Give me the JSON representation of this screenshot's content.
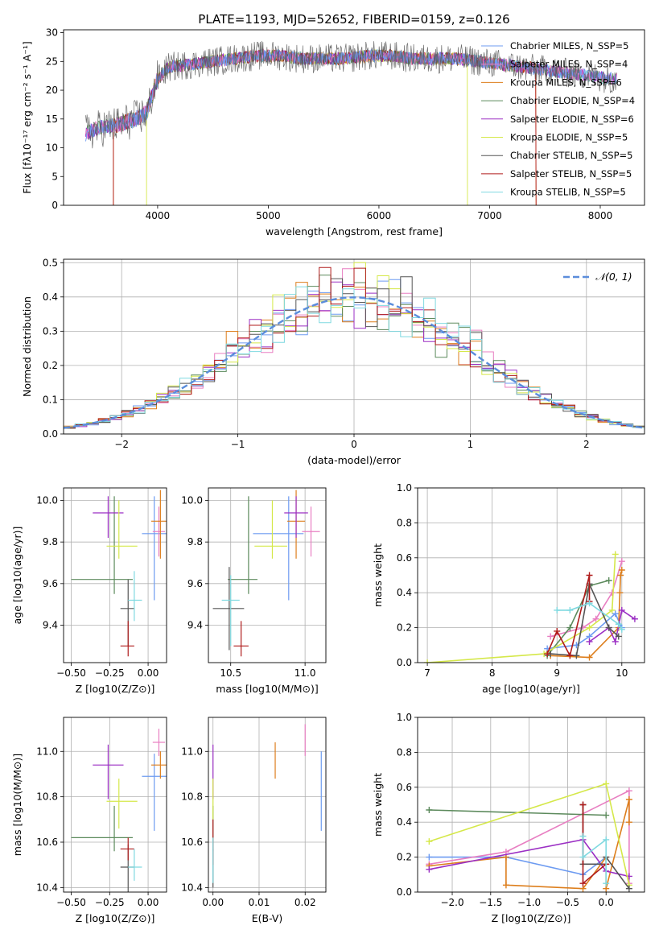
{
  "title": "PLATE=1193, MJD=52652, FIBERID=0159, z=0.126",
  "colors": {
    "chabrier_miles": "#6d9bf1",
    "salpeter_miles": "#e87fc2",
    "kroupa_miles": "#dd7e1c",
    "chabrier_elodie": "#5c8a5c",
    "salpeter_elodie": "#9b2fc4",
    "kroupa_elodie": "#d5e84a",
    "chabrier_stelib": "#555555",
    "salpeter_stelib": "#b01c1c",
    "kroupa_stelib": "#7fd9e0",
    "normal": "#5b8ddb",
    "grid": "#b0b0b0"
  },
  "chart_data": [
    {
      "type": "line",
      "title": "PLATE=1193, MJD=52652, FIBERID=0159, z=0.126",
      "xlabel": "wavelength [Angstrom, rest frame]",
      "ylabel": "Flux [fλ10⁻¹⁷ erg cm⁻² s⁻¹ A⁻¹]",
      "xlim": [
        3150,
        8400
      ],
      "ylim": [
        0,
        30.5
      ],
      "xticks": [
        4000,
        5000,
        6000,
        7000,
        8000
      ],
      "yticks": [
        0,
        5,
        10,
        15,
        20,
        25,
        30
      ],
      "grid": false,
      "legend_position": "right",
      "legend": [
        "Chabrier MILES, N_SSP=5",
        "Salpeter MILES, N_SSP=4",
        "Kroupa MILES, N_SSP=6",
        "Chabrier ELODIE, N_SSP=4",
        "Salpeter ELODIE, N_SSP=6",
        "Kroupa ELODIE, N_SSP=5",
        "Chabrier STELIB, N_SSP=5",
        "Salpeter STELIB, N_SSP=5",
        "Kroupa STELIB, N_SSP=5"
      ],
      "continuum": {
        "x": [
          3350,
          3500,
          3650,
          3800,
          3900,
          4000,
          4100,
          4300,
          4500,
          4700,
          4900,
          5100,
          5300,
          5500,
          5700,
          5900,
          6100,
          6300,
          6500,
          6700,
          6900,
          7100,
          7300,
          7500,
          7700,
          7900,
          8100
        ],
        "y": [
          12.5,
          13.5,
          14,
          15,
          16,
          22,
          24,
          24.5,
          25,
          25.5,
          26,
          26,
          25.5,
          25.5,
          25.5,
          26,
          26,
          25.5,
          25.5,
          25.5,
          25,
          24.5,
          24,
          23.5,
          23,
          22.5,
          22
        ]
      }
    },
    {
      "type": "bar",
      "xlabel": "(data-model)/error",
      "ylabel": "Normed distribution",
      "xlim": [
        -2.5,
        2.5
      ],
      "ylim": [
        0,
        0.51
      ],
      "xticks": [
        -2,
        -1,
        0,
        1,
        2
      ],
      "yticks": [
        0.0,
        0.1,
        0.2,
        0.3,
        0.4,
        0.5
      ],
      "grid": true,
      "legend": [
        "𝒩(0, 1)"
      ],
      "legend_position": "top-right",
      "bin_width": 0.1
    },
    {
      "type": "scatter",
      "xlabel": "Z [log10(Z/Z⊙)]",
      "ylabel": "age  [log10(age/yr)]",
      "xlim": [
        -0.55,
        0.12
      ],
      "ylim": [
        9.22,
        10.06
      ],
      "xticks": [
        -0.5,
        -0.25,
        0.0
      ],
      "yticks": [
        9.4,
        9.6,
        9.8,
        10.0
      ],
      "grid": true,
      "points": [
        {
          "model": "chabrier_miles",
          "x": 0.04,
          "y": 9.84,
          "xerr": [
            0.08,
            0.12
          ],
          "yerr": [
            0.32,
            0.18
          ]
        },
        {
          "model": "salpeter_miles",
          "x": 0.07,
          "y": 9.85,
          "xerr": [
            0.04,
            0.04
          ],
          "yerr": [
            0.12,
            0.12
          ]
        },
        {
          "model": "kroupa_miles",
          "x": 0.08,
          "y": 9.9,
          "xerr": [
            0.06,
            0.06
          ],
          "yerr": [
            0.18,
            0.15
          ]
        },
        {
          "model": "chabrier_elodie",
          "x": -0.22,
          "y": 9.62,
          "xerr": [
            0.28,
            0.12
          ],
          "yerr": [
            0.07,
            0.4
          ]
        },
        {
          "model": "salpeter_elodie",
          "x": -0.26,
          "y": 9.94,
          "xerr": [
            0.1,
            0.1
          ],
          "yerr": [
            0.12,
            0.08
          ]
        },
        {
          "model": "kroupa_elodie",
          "x": -0.19,
          "y": 9.78,
          "xerr": [
            0.08,
            0.12
          ],
          "yerr": [
            0.06,
            0.22
          ]
        },
        {
          "model": "chabrier_stelib",
          "x": -0.13,
          "y": 9.48,
          "xerr": [
            0.05,
            0.04
          ],
          "yerr": [
            0.18,
            0.14
          ]
        },
        {
          "model": "salpeter_stelib",
          "x": -0.13,
          "y": 9.3,
          "xerr": [
            0.05,
            0.04
          ],
          "yerr": [
            0.05,
            0.12
          ]
        },
        {
          "model": "kroupa_stelib",
          "x": -0.09,
          "y": 9.52,
          "xerr": [
            0.04,
            0.05
          ],
          "yerr": [
            0.1,
            0.14
          ]
        }
      ]
    },
    {
      "type": "scatter",
      "xlabel": "mass [log10(M/M⊙)]",
      "xlim": [
        10.35,
        11.14
      ],
      "ylim": [
        9.22,
        10.06
      ],
      "xticks": [
        10.5,
        11.0
      ],
      "yticks": [
        9.4,
        9.6,
        9.8,
        10.0
      ],
      "grid": true,
      "points": [
        {
          "model": "chabrier_miles",
          "x": 10.89,
          "y": 9.84,
          "xerr": [
            0.24,
            0.1
          ],
          "yerr": [
            0.32,
            0.18
          ]
        },
        {
          "model": "salpeter_miles",
          "x": 11.04,
          "y": 9.85,
          "xerr": [
            0.06,
            0.06
          ],
          "yerr": [
            0.12,
            0.12
          ]
        },
        {
          "model": "kroupa_miles",
          "x": 10.94,
          "y": 9.9,
          "xerr": [
            0.06,
            0.06
          ],
          "yerr": [
            0.18,
            0.15
          ]
        },
        {
          "model": "chabrier_elodie",
          "x": 10.62,
          "y": 9.62,
          "xerr": [
            0.14,
            0.06
          ],
          "yerr": [
            0.07,
            0.4
          ]
        },
        {
          "model": "salpeter_elodie",
          "x": 10.94,
          "y": 9.94,
          "xerr": [
            0.08,
            0.08
          ],
          "yerr": [
            0.12,
            0.08
          ]
        },
        {
          "model": "kroupa_elodie",
          "x": 10.78,
          "y": 9.78,
          "xerr": [
            0.12,
            0.1
          ],
          "yerr": [
            0.06,
            0.22
          ]
        },
        {
          "model": "chabrier_stelib",
          "x": 10.49,
          "y": 9.48,
          "xerr": [
            0.11,
            0.1
          ],
          "yerr": [
            0.2,
            0.2
          ]
        },
        {
          "model": "salpeter_stelib",
          "x": 10.57,
          "y": 9.3,
          "xerr": [
            0.05,
            0.05
          ],
          "yerr": [
            0.05,
            0.12
          ]
        },
        {
          "model": "kroupa_stelib",
          "x": 10.5,
          "y": 9.52,
          "xerr": [
            0.06,
            0.06
          ],
          "yerr": [
            0.22,
            0.12
          ]
        }
      ]
    },
    {
      "type": "line",
      "xlabel": "age  [log10(age/yr)]",
      "ylabel": "mass weight",
      "xlim": [
        6.85,
        10.35
      ],
      "ylim": [
        0,
        1.0
      ],
      "xticks": [
        7,
        8,
        9,
        10
      ],
      "yticks": [
        0.0,
        0.2,
        0.4,
        0.6,
        0.8,
        1.0
      ],
      "grid": true,
      "series": [
        {
          "model": "chabrier_miles",
          "x": [
            8.85,
            9.3,
            9.5,
            9.9,
            10.0
          ],
          "y": [
            0.08,
            0.1,
            0.15,
            0.28,
            0.2
          ]
        },
        {
          "model": "salpeter_miles",
          "x": [
            8.9,
            9.4,
            9.6,
            9.85,
            10.0
          ],
          "y": [
            0.15,
            0.2,
            0.25,
            0.4,
            0.58
          ]
        },
        {
          "model": "kroupa_miles",
          "x": [
            8.9,
            9.5,
            9.95,
            9.97,
            9.98,
            10.0
          ],
          "y": [
            0.04,
            0.03,
            0.2,
            0.4,
            0.5,
            0.53
          ]
        },
        {
          "model": "chabrier_elodie",
          "x": [
            8.85,
            9.2,
            9.5,
            9.8
          ],
          "y": [
            0.04,
            0.2,
            0.44,
            0.47
          ]
        },
        {
          "model": "salpeter_elodie",
          "x": [
            9.5,
            9.8,
            9.9,
            10.0,
            10.2
          ],
          "y": [
            0.12,
            0.2,
            0.12,
            0.3,
            0.25
          ]
        },
        {
          "model": "kroupa_elodie",
          "x": [
            7.0,
            8.8,
            9.5,
            9.85,
            9.9
          ],
          "y": [
            0.0,
            0.05,
            0.2,
            0.3,
            0.62
          ]
        },
        {
          "model": "chabrier_stelib",
          "x": [
            8.9,
            9.3,
            9.5,
            9.8,
            9.95
          ],
          "y": [
            0.05,
            0.04,
            0.45,
            0.2,
            0.15
          ]
        },
        {
          "model": "salpeter_stelib",
          "x": [
            8.85,
            9.0,
            9.2,
            9.5,
            9.5
          ],
          "y": [
            0.05,
            0.18,
            0.04,
            0.5,
            0.35
          ]
        },
        {
          "model": "kroupa_stelib",
          "x": [
            9.0,
            9.2,
            9.5,
            9.95,
            10.0
          ],
          "y": [
            0.3,
            0.3,
            0.34,
            0.22,
            0.19
          ]
        }
      ]
    },
    {
      "type": "scatter",
      "xlabel": "Z [log10(Z/Z⊙)]",
      "ylabel": "mass [log10(M/M⊙)]",
      "xlim": [
        -0.55,
        0.12
      ],
      "ylim": [
        10.38,
        11.15
      ],
      "xticks": [
        -0.5,
        -0.25,
        0.0
      ],
      "yticks": [
        10.4,
        10.6,
        10.8,
        11.0
      ],
      "grid": true,
      "points": [
        {
          "model": "chabrier_miles",
          "x": 0.04,
          "y": 10.89,
          "xerr": [
            0.08,
            0.12
          ],
          "yerr": [
            0.24,
            0.1
          ]
        },
        {
          "model": "salpeter_miles",
          "x": 0.07,
          "y": 11.04,
          "xerr": [
            0.04,
            0.04
          ],
          "yerr": [
            0.06,
            0.06
          ]
        },
        {
          "model": "kroupa_miles",
          "x": 0.08,
          "y": 10.94,
          "xerr": [
            0.06,
            0.06
          ],
          "yerr": [
            0.06,
            0.06
          ]
        },
        {
          "model": "chabrier_elodie",
          "x": -0.22,
          "y": 10.62,
          "xerr": [
            0.28,
            0.12
          ],
          "yerr": [
            0.06,
            0.14
          ]
        },
        {
          "model": "salpeter_elodie",
          "x": -0.26,
          "y": 10.94,
          "xerr": [
            0.1,
            0.1
          ],
          "yerr": [
            0.15,
            0.09
          ]
        },
        {
          "model": "kroupa_elodie",
          "x": -0.19,
          "y": 10.78,
          "xerr": [
            0.08,
            0.12
          ],
          "yerr": [
            0.12,
            0.1
          ]
        },
        {
          "model": "chabrier_stelib",
          "x": -0.13,
          "y": 10.49,
          "xerr": [
            0.05,
            0.04
          ],
          "yerr": [
            0.11,
            0.1
          ]
        },
        {
          "model": "salpeter_stelib",
          "x": -0.13,
          "y": 10.57,
          "xerr": [
            0.05,
            0.04
          ],
          "yerr": [
            0.05,
            0.05
          ]
        },
        {
          "model": "kroupa_stelib",
          "x": -0.09,
          "y": 10.49,
          "xerr": [
            0.04,
            0.05
          ],
          "yerr": [
            0.06,
            0.08
          ]
        }
      ]
    },
    {
      "type": "scatter",
      "xlabel": "E(B-V)",
      "xlim": [
        -0.001,
        0.0245
      ],
      "ylim": [
        10.38,
        11.15
      ],
      "xticks": [
        0.0,
        0.01,
        0.02
      ],
      "yticks": [
        10.4,
        10.6,
        10.8,
        11.0
      ],
      "grid": true,
      "points": [
        {
          "model": "chabrier_miles",
          "x": 0.0235,
          "y": 10.88,
          "yerr": [
            0.23,
            0.12
          ]
        },
        {
          "model": "salpeter_miles",
          "x": 0.02,
          "y": 11.04,
          "yerr": [
            0.06,
            0.08
          ]
        },
        {
          "model": "kroupa_miles",
          "x": 0.0135,
          "y": 10.97,
          "yerr": [
            0.09,
            0.07
          ]
        },
        {
          "model": "chabrier_elodie",
          "x": 0.0,
          "y": 10.62,
          "yerr": [
            0.06,
            0.14
          ]
        },
        {
          "model": "salpeter_elodie",
          "x": 0.0,
          "y": 10.94,
          "yerr": [
            0.15,
            0.09
          ]
        },
        {
          "model": "kroupa_elodie",
          "x": 0.0,
          "y": 10.78,
          "yerr": [
            0.08,
            0.1
          ]
        },
        {
          "model": "chabrier_stelib",
          "x": 0.0,
          "y": 10.49,
          "yerr": [
            0.09,
            0.08
          ]
        },
        {
          "model": "salpeter_stelib",
          "x": 0.0,
          "y": 10.6,
          "yerr": [
            0.1,
            0.1
          ]
        },
        {
          "model": "kroupa_stelib",
          "x": 0.0,
          "y": 10.52,
          "yerr": [
            0.1,
            0.1
          ]
        }
      ]
    },
    {
      "type": "line",
      "xlabel": "Z [log10(Z/Z⊙)]",
      "ylabel": "mass weight",
      "xlim": [
        -2.45,
        0.5
      ],
      "ylim": [
        0,
        1.0
      ],
      "xticks": [
        -2.0,
        -1.5,
        -1.0,
        -0.5,
        0.0
      ],
      "yticks": [
        0.0,
        0.2,
        0.4,
        0.6,
        0.8,
        1.0
      ],
      "grid": true,
      "series": [
        {
          "model": "chabrier_miles",
          "x": [
            -2.3,
            -1.3,
            -0.3,
            0.0
          ],
          "y": [
            0.2,
            0.2,
            0.1,
            0.2
          ]
        },
        {
          "model": "salpeter_miles",
          "x": [
            -2.3,
            -1.3,
            0.3,
            0.3
          ],
          "y": [
            0.16,
            0.23,
            0.58,
            0.05
          ]
        },
        {
          "model": "kroupa_miles",
          "x": [
            -2.3,
            -1.3,
            -1.3,
            -0.3,
            0.0,
            0.0,
            0.3,
            0.3
          ],
          "y": [
            0.15,
            0.2,
            0.04,
            0.02,
            0.2,
            0.02,
            0.53,
            0.4
          ]
        },
        {
          "model": "chabrier_elodie",
          "x": [
            -2.3,
            0.0
          ],
          "y": [
            0.47,
            0.44
          ]
        },
        {
          "model": "salpeter_elodie",
          "x": [
            -2.3,
            -0.3,
            0.0,
            0.3
          ],
          "y": [
            0.13,
            0.3,
            0.12,
            0.09
          ]
        },
        {
          "model": "kroupa_elodie",
          "x": [
            -2.3,
            0.0,
            0.3
          ],
          "y": [
            0.29,
            0.62,
            0.04
          ]
        },
        {
          "model": "chabrier_stelib",
          "x": [
            -0.3,
            -0.3,
            0.0,
            0.0,
            0.3
          ],
          "y": [
            0.5,
            0.16,
            0.16,
            0.2,
            0.02
          ]
        },
        {
          "model": "salpeter_stelib",
          "x": [
            -0.3,
            -0.3,
            0.0
          ],
          "y": [
            0.5,
            0.05,
            0.16
          ]
        },
        {
          "model": "kroupa_stelib",
          "x": [
            -0.3,
            -0.3,
            0.0,
            0.0
          ],
          "y": [
            0.32,
            0.2,
            0.3,
            0.05
          ]
        }
      ]
    }
  ]
}
